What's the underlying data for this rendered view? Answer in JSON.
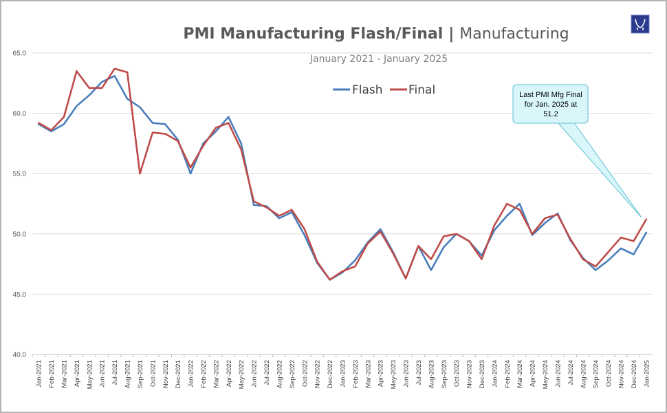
{
  "colors": {
    "flash": "#4a7ebb",
    "final": "#be4b48",
    "callout_fill": "#d9f6fb",
    "callout_stroke": "#5fbfd0",
    "logo": "#2b3a8c"
  },
  "logo": {
    "name": "bull-logo-icon"
  },
  "chart_data": {
    "type": "line",
    "title": "PMI Manufacturing Flash/Final",
    "title_separator": "|",
    "title_suffix": "Manufacturing",
    "subtitle": "January 2021 - January 2025",
    "ylim": [
      40,
      65
    ],
    "yticks": [
      "40.0",
      "45.0",
      "50.0",
      "55.0",
      "60.0",
      "65.0"
    ],
    "ytick_values": [
      40,
      45,
      50,
      55,
      60,
      65
    ],
    "legend_position": "top-center",
    "grid": true,
    "categories": [
      "Jan-2021",
      "Feb-2021",
      "Mar-2021",
      "Apr-2021",
      "May-2021",
      "Jun-2021",
      "Jul-2021",
      "Aug-2021",
      "Sep-2021",
      "Oct-2021",
      "Nov-2021",
      "Dec-2021",
      "Jan-2022",
      "Feb-2022",
      "Mar-2022",
      "Apr-2022",
      "May-2022",
      "Jun-2022",
      "Jul-2022",
      "Aug-2022",
      "Sep-2022",
      "Oct-2022",
      "Nov-2022",
      "Dec-2022",
      "Jan-2023",
      "Feb-2023",
      "Mar-2023",
      "Apr-2023",
      "May-2023",
      "Jun-2023",
      "Jul-2023",
      "Aug-2023",
      "Sep-2023",
      "Oct-2023",
      "Nov-2023",
      "Dec-2023",
      "Jan-2024",
      "Feb-2024",
      "Mar-2024",
      "Apr-2024",
      "May-2024",
      "Jun-2024",
      "Jul-2024",
      "Aug-2024",
      "Sep-2024",
      "Oct-2024",
      "Nov-2024",
      "Dec-2024",
      "Jan-2025"
    ],
    "series": [
      {
        "name": "Flash",
        "values": [
          59.1,
          58.5,
          59.1,
          60.6,
          61.5,
          62.6,
          63.1,
          61.2,
          60.5,
          59.2,
          59.1,
          57.8,
          55.0,
          57.5,
          58.5,
          59.7,
          57.5,
          52.4,
          52.3,
          51.3,
          51.8,
          49.9,
          47.6,
          46.2,
          46.8,
          47.8,
          49.3,
          50.4,
          48.5,
          46.3,
          49.0,
          47.0,
          48.9,
          50.0,
          49.4,
          48.2,
          50.3,
          51.5,
          52.5,
          49.9,
          50.9,
          51.7,
          49.5,
          48.0,
          47.0,
          47.8,
          48.8,
          48.3,
          50.1
        ]
      },
      {
        "name": "Final",
        "values": [
          59.2,
          58.6,
          59.7,
          63.5,
          62.1,
          62.1,
          63.7,
          63.4,
          55.0,
          58.4,
          58.3,
          57.7,
          55.5,
          57.3,
          58.8,
          59.2,
          57.0,
          52.7,
          52.2,
          51.5,
          52.0,
          50.4,
          47.7,
          46.2,
          46.9,
          47.3,
          49.2,
          50.2,
          48.4,
          46.3,
          49.0,
          47.9,
          49.8,
          50.0,
          49.4,
          47.9,
          50.7,
          52.5,
          52.0,
          50.0,
          51.3,
          51.6,
          49.6,
          47.9,
          47.3,
          48.5,
          49.7,
          49.4,
          51.2
        ]
      }
    ],
    "annotation": {
      "lines": [
        "Last PMI Mfg Final",
        "for Jan. 2025 at",
        "51.2"
      ],
      "points_to": "Jan-2025"
    }
  }
}
